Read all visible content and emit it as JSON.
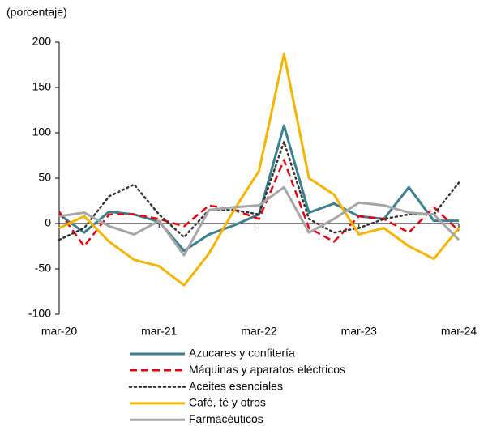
{
  "chart_data": {
    "type": "line",
    "y_label": "(porcentaje)",
    "categories": [
      "mar-20",
      null,
      null,
      null,
      "mar-21",
      null,
      null,
      null,
      "mar-22",
      null,
      null,
      null,
      "mar-23",
      null,
      null,
      null,
      "mar-24"
    ],
    "ylim": [
      -100,
      200
    ],
    "yticks": [
      -100,
      -50,
      0,
      50,
      100,
      150,
      200
    ],
    "series": [
      {
        "name": "Azucares y confitería",
        "color": "#3d7f8f",
        "dash": "solid",
        "values": [
          10,
          -10,
          13,
          10,
          2,
          -30,
          -12,
          -2,
          10,
          108,
          12,
          22,
          8,
          5,
          40,
          3,
          3
        ]
      },
      {
        "name": "Máquinas y aparatos eléctricos",
        "color": "#e3000f",
        "dash": "dashed",
        "values": [
          13,
          -25,
          10,
          10,
          5,
          -3,
          20,
          15,
          5,
          70,
          -5,
          -20,
          8,
          5,
          -10,
          18,
          -8
        ]
      },
      {
        "name": "Aceites esenciales",
        "color": "#333333",
        "dash": "dotted",
        "values": [
          -18,
          -5,
          30,
          43,
          10,
          -15,
          15,
          15,
          10,
          90,
          5,
          -10,
          -5,
          5,
          10,
          10,
          45
        ]
      },
      {
        "name": "Café, té y otros",
        "color": "#f5b400",
        "dash": "solid",
        "values": [
          -5,
          8,
          -20,
          -40,
          -47,
          -68,
          -33,
          15,
          58,
          187,
          50,
          32,
          -12,
          -5,
          -25,
          -39,
          -5
        ]
      },
      {
        "name": "Farmacéuticos",
        "color": "#a6a6a6",
        "dash": "solid",
        "values": [
          8,
          12,
          -3,
          -12,
          3,
          -35,
          15,
          18,
          20,
          40,
          -10,
          5,
          23,
          20,
          12,
          10,
          -18
        ]
      }
    ]
  }
}
